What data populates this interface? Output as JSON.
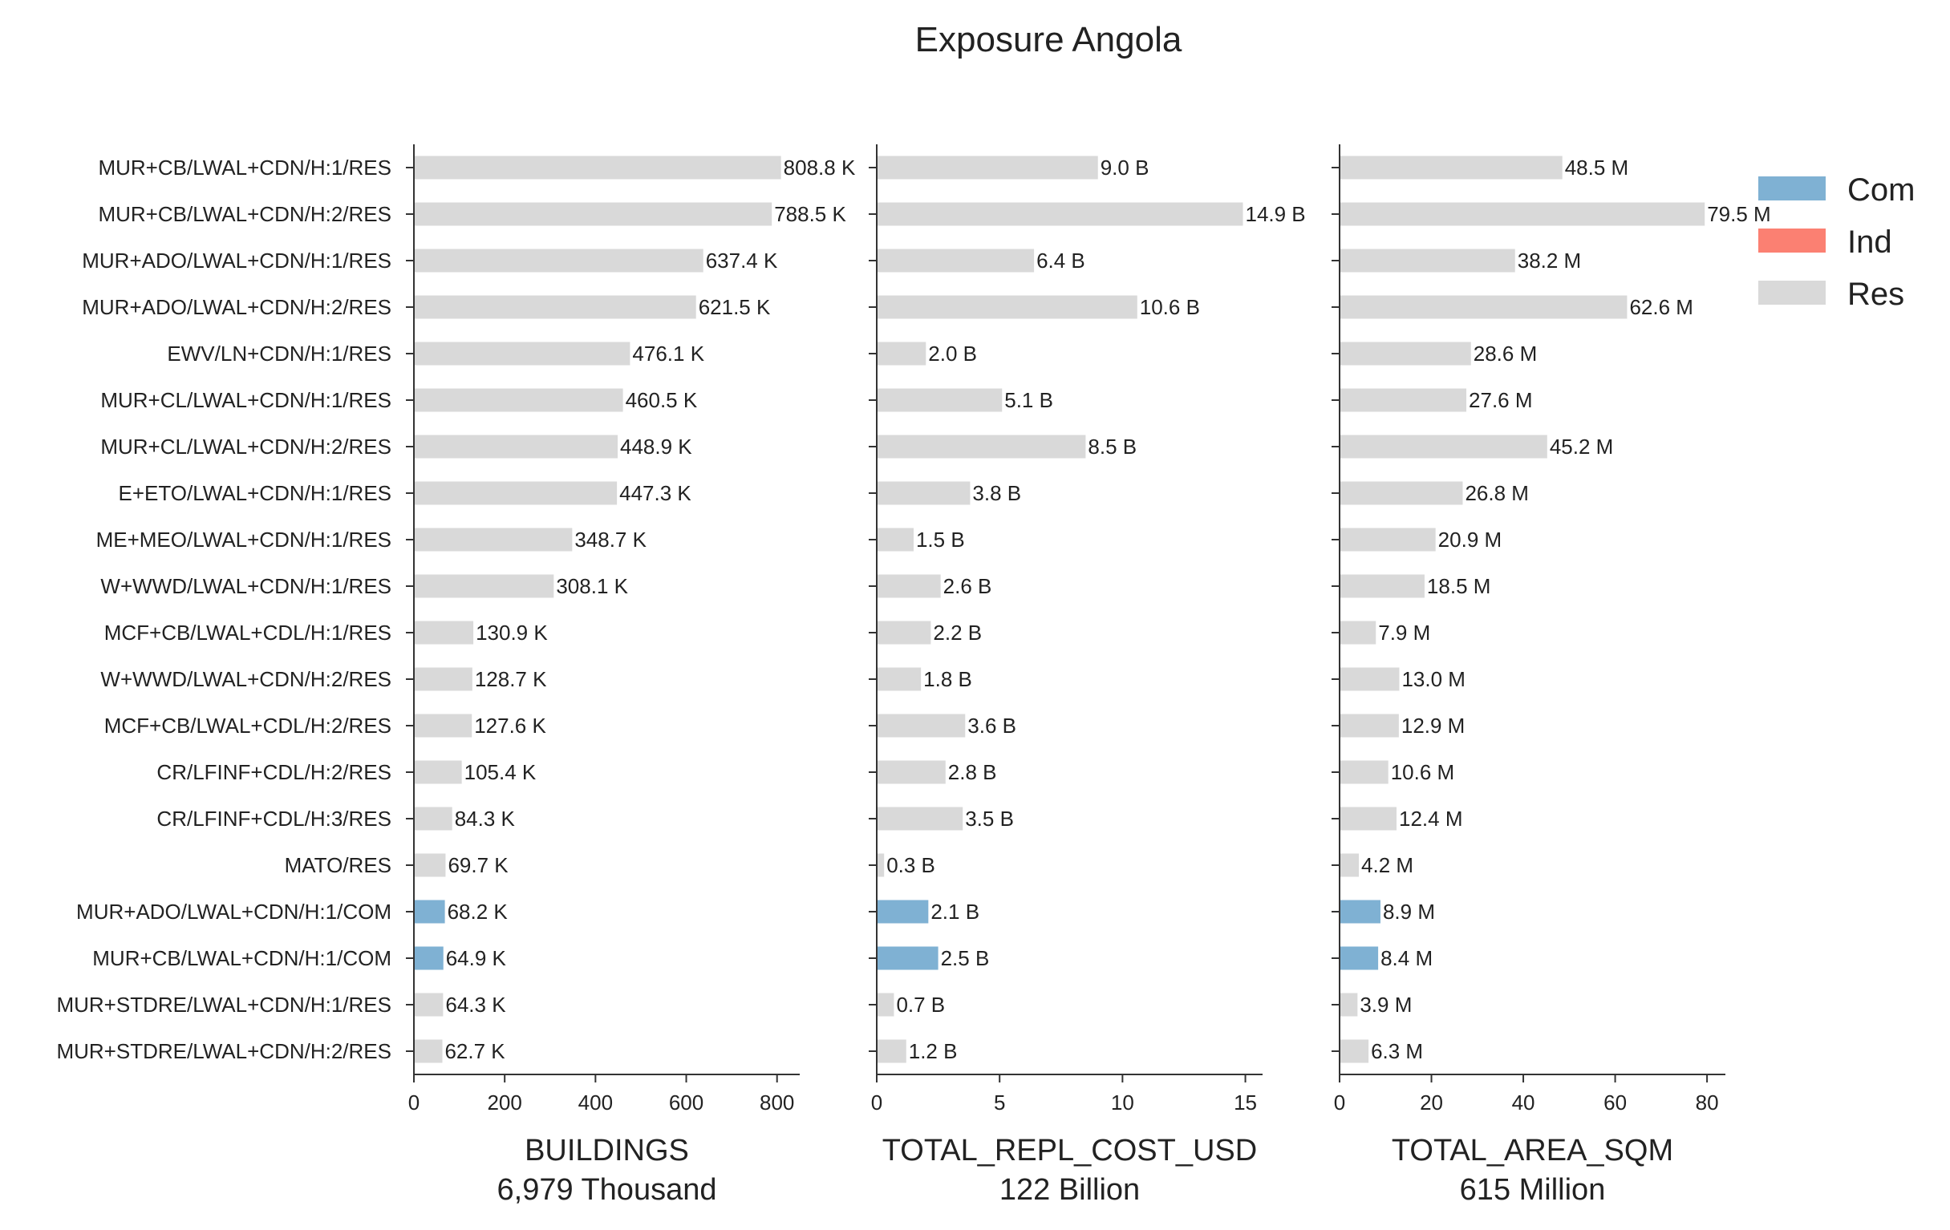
{
  "title": "Exposure Angola",
  "colors": {
    "Com": "#7fb1d3",
    "Ind": "#fb8072",
    "Res": "#d9d9d9"
  },
  "legend": [
    {
      "key": "Com",
      "label": "Com"
    },
    {
      "key": "Ind",
      "label": "Ind"
    },
    {
      "key": "Res",
      "label": "Res"
    }
  ],
  "chart_data": [
    {
      "type": "bar",
      "orientation": "horizontal",
      "xlabel": "BUILDINGS",
      "total": "6,979 Thousand",
      "xlim": [
        0,
        850
      ],
      "xticks": [
        0,
        200,
        400,
        600,
        800
      ],
      "categories": [
        "MUR+CB/LWAL+CDN/H:1/RES",
        "MUR+CB/LWAL+CDN/H:2/RES",
        "MUR+ADO/LWAL+CDN/H:1/RES",
        "MUR+ADO/LWAL+CDN/H:2/RES",
        "EWV/LN+CDN/H:1/RES",
        "MUR+CL/LWAL+CDN/H:1/RES",
        "MUR+CL/LWAL+CDN/H:2/RES",
        "E+ETO/LWAL+CDN/H:1/RES",
        "ME+MEO/LWAL+CDN/H:1/RES",
        "W+WWD/LWAL+CDN/H:1/RES",
        "MCF+CB/LWAL+CDL/H:1/RES",
        "W+WWD/LWAL+CDN/H:2/RES",
        "MCF+CB/LWAL+CDL/H:2/RES",
        "CR/LFINF+CDL/H:2/RES",
        "CR/LFINF+CDL/H:3/RES",
        "MATO/RES",
        "MUR+ADO/LWAL+CDN/H:1/COM",
        "MUR+CB/LWAL+CDN/H:1/COM",
        "MUR+STDRE/LWAL+CDN/H:1/RES",
        "MUR+STDRE/LWAL+CDN/H:2/RES"
      ],
      "occupancy": [
        "Res",
        "Res",
        "Res",
        "Res",
        "Res",
        "Res",
        "Res",
        "Res",
        "Res",
        "Res",
        "Res",
        "Res",
        "Res",
        "Res",
        "Res",
        "Res",
        "Com",
        "Com",
        "Res",
        "Res"
      ],
      "values": [
        808.8,
        788.5,
        637.4,
        621.5,
        476.1,
        460.5,
        448.9,
        447.3,
        348.7,
        308.1,
        130.9,
        128.7,
        127.6,
        105.4,
        84.3,
        69.7,
        68.2,
        64.9,
        64.3,
        62.7
      ],
      "labels": [
        "808.8 K",
        "788.5 K",
        "637.4 K",
        "621.5 K",
        "476.1 K",
        "460.5 K",
        "448.9 K",
        "447.3 K",
        "348.7 K",
        "308.1 K",
        "130.9 K",
        "128.7 K",
        "127.6 K",
        "105.4 K",
        "84.3 K",
        "69.7 K",
        "68.2 K",
        "64.9 K",
        "64.3 K",
        "62.7 K"
      ]
    },
    {
      "type": "bar",
      "orientation": "horizontal",
      "xlabel": "TOTAL_REPL_COST_USD",
      "total": "122 Billion",
      "xlim": [
        0,
        15.7
      ],
      "xticks": [
        0,
        5,
        10,
        15
      ],
      "values": [
        9.0,
        14.9,
        6.4,
        10.6,
        2.0,
        5.1,
        8.5,
        3.8,
        1.5,
        2.6,
        2.2,
        1.8,
        3.6,
        2.8,
        3.5,
        0.3,
        2.1,
        2.5,
        0.7,
        1.2
      ],
      "labels": [
        "9.0 B",
        "14.9 B",
        "6.4 B",
        "10.6 B",
        "2.0 B",
        "5.1 B",
        "8.5 B",
        "3.8 B",
        "1.5 B",
        "2.6 B",
        "2.2 B",
        "1.8 B",
        "3.6 B",
        "2.8 B",
        "3.5 B",
        "0.3 B",
        "2.1 B",
        "2.5 B",
        "0.7 B",
        "1.2 B"
      ]
    },
    {
      "type": "bar",
      "orientation": "horizontal",
      "xlabel": "TOTAL_AREA_SQM",
      "total": "615 Million",
      "xlim": [
        0,
        84
      ],
      "xticks": [
        0,
        20,
        40,
        60,
        80
      ],
      "values": [
        48.5,
        79.5,
        38.2,
        62.6,
        28.6,
        27.6,
        45.2,
        26.8,
        20.9,
        18.5,
        7.9,
        13.0,
        12.9,
        10.6,
        12.4,
        4.2,
        8.9,
        8.4,
        3.9,
        6.3
      ],
      "labels": [
        "48.5 M",
        "79.5 M",
        "38.2 M",
        "62.6 M",
        "28.6 M",
        "27.6 M",
        "45.2 M",
        "26.8 M",
        "20.9 M",
        "18.5 M",
        "7.9 M",
        "13.0 M",
        "12.9 M",
        "10.6 M",
        "12.4 M",
        "4.2 M",
        "8.9 M",
        "8.4 M",
        "3.9 M",
        "6.3 M"
      ]
    }
  ]
}
